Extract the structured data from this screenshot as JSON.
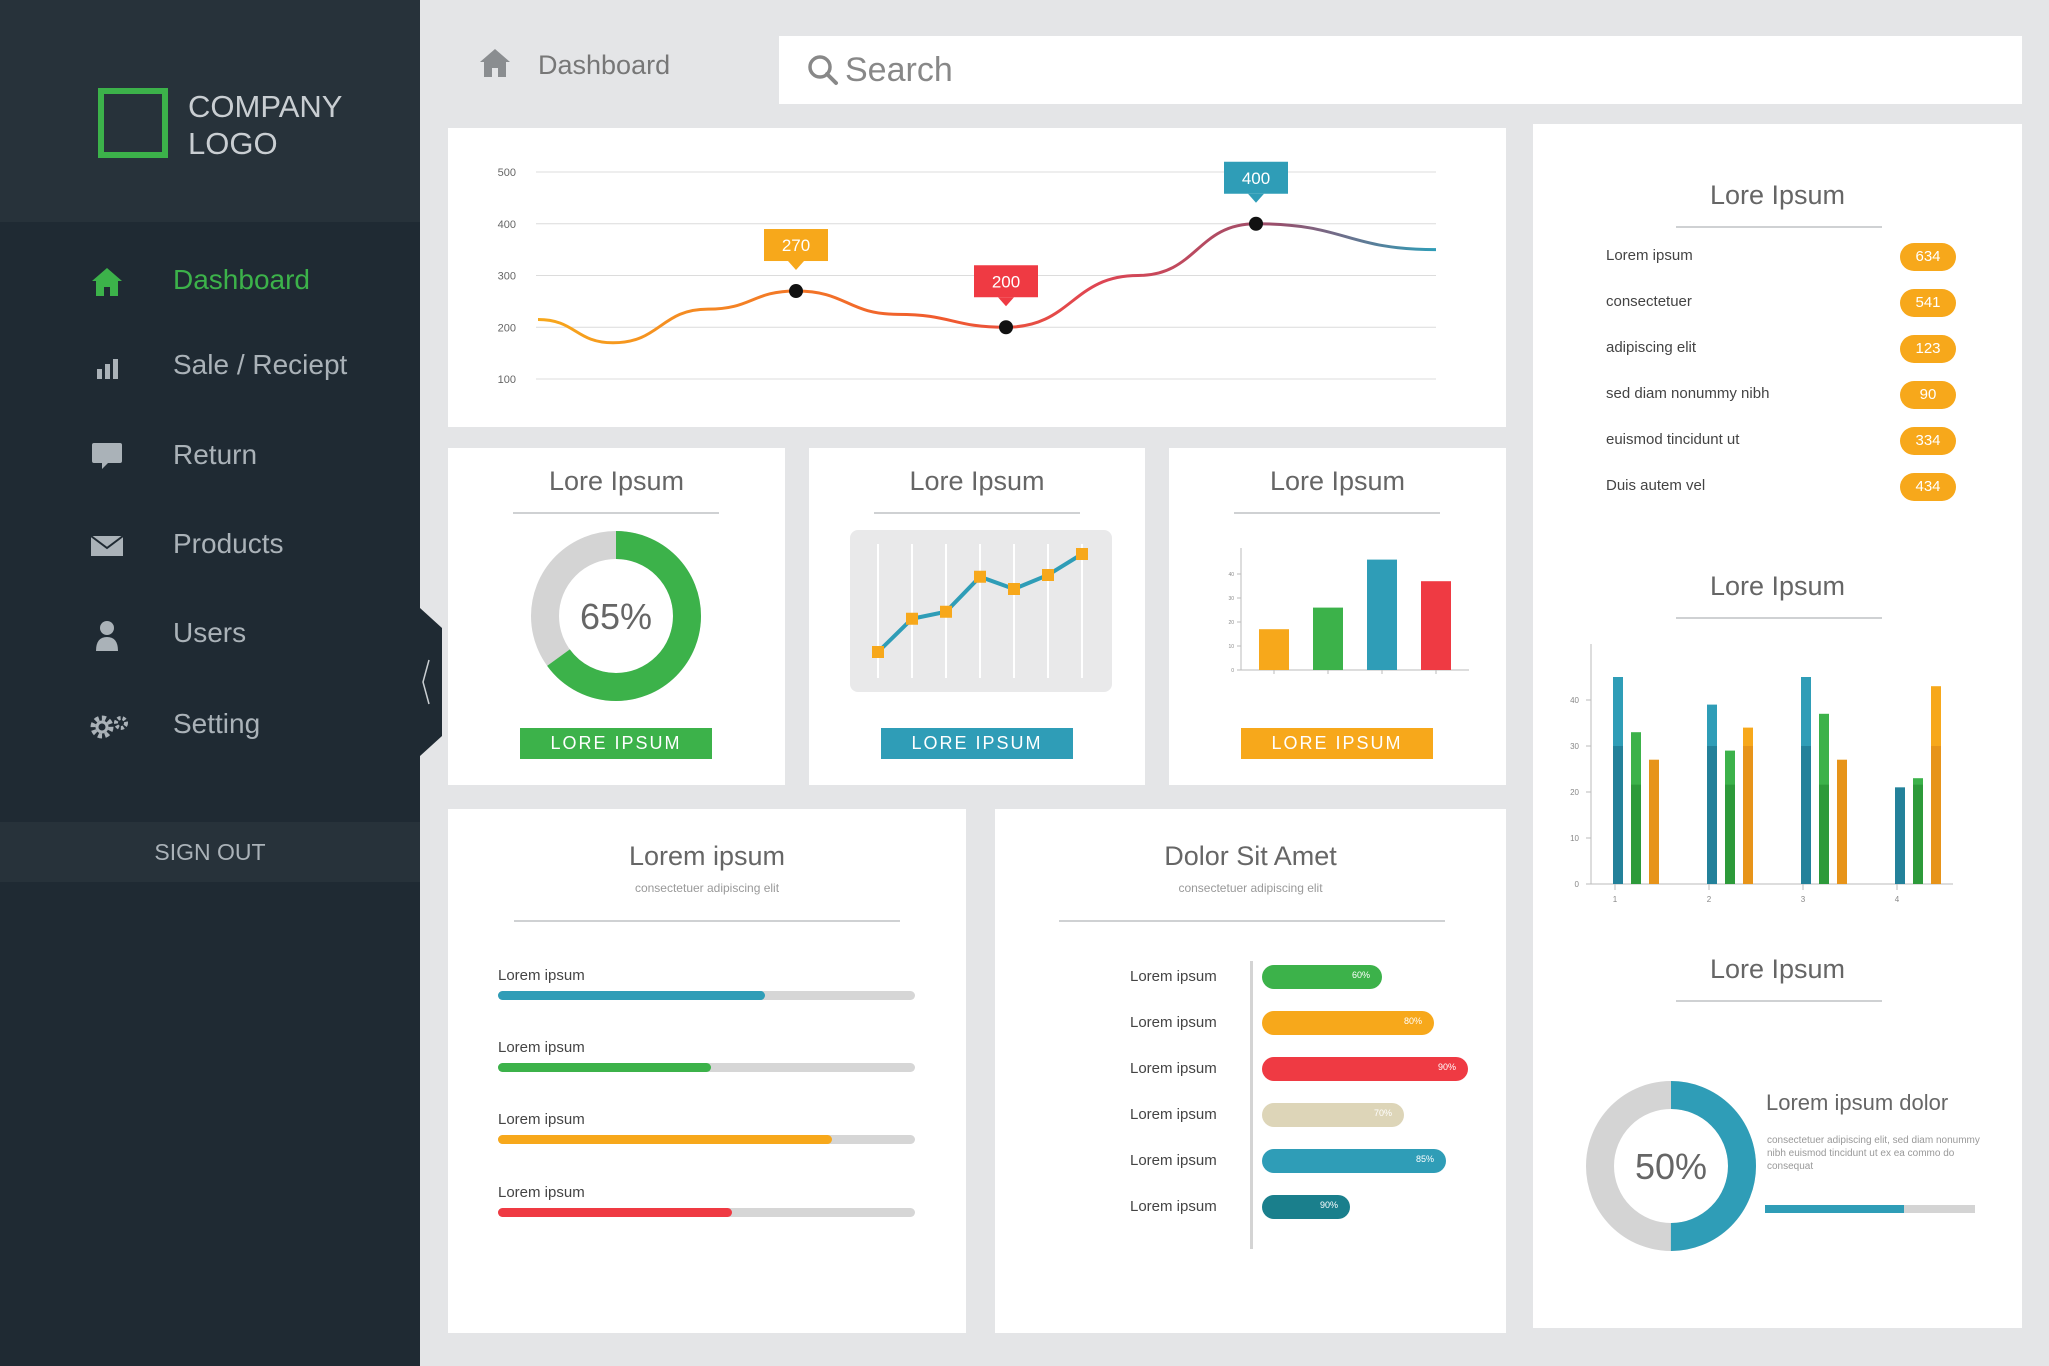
{
  "brand": {
    "logo_text": "COMPANY LOGO"
  },
  "nav": [
    {
      "label": "Dashboard",
      "icon": "home-icon",
      "active": true
    },
    {
      "label": "Sale / Reciept",
      "icon": "bar-chart-icon"
    },
    {
      "label": "Return",
      "icon": "speech-bubble-icon"
    },
    {
      "label": "Products",
      "icon": "envelope-icon"
    },
    {
      "label": "Users",
      "icon": "user-icon"
    },
    {
      "label": "Setting",
      "icon": "gears-icon"
    }
  ],
  "sign_out": "SIGN OUT",
  "breadcrumb": {
    "icon": "home-icon",
    "label": "Dashboard"
  },
  "search": {
    "placeholder": "Search",
    "icon": "search-icon"
  },
  "colors": {
    "green": "#3cb24a",
    "blue": "#2f9db7",
    "orange": "#f7a81b",
    "red": "#ef3a43",
    "beige": "#ddd5b8",
    "teal": "#1a7f8c",
    "sidebar": "#1f2a33"
  },
  "line_chart": {
    "y_ticks": [
      "500",
      "400",
      "300",
      "200",
      "100"
    ],
    "callouts": [
      "270",
      "200",
      "400"
    ]
  },
  "donut_card": {
    "title": "Lore Ipsum",
    "value_label": "65%",
    "button": "LORE IPSUM"
  },
  "line_card": {
    "title": "Lore Ipsum",
    "button": "LORE IPSUM"
  },
  "bar_card": {
    "title": "Lore Ipsum",
    "button": "LORE IPSUM"
  },
  "progress_card": {
    "title": "Lorem ipsum",
    "subtitle": "consectetuer adipiscing elit",
    "items": [
      {
        "label": "Lorem ipsum"
      },
      {
        "label": "Lorem ipsum"
      },
      {
        "label": "Lorem ipsum"
      },
      {
        "label": "Lorem ipsum"
      }
    ]
  },
  "hbar_card": {
    "title": "Dolor Sit Amet",
    "subtitle": "consectetuer adipiscing elit",
    "items": [
      {
        "label": "Lorem ipsum",
        "pct": "60%"
      },
      {
        "label": "Lorem ipsum",
        "pct": "80%"
      },
      {
        "label": "Lorem ipsum",
        "pct": "90%"
      },
      {
        "label": "Lorem ipsum",
        "pct": "70%"
      },
      {
        "label": "Lorem ipsum",
        "pct": "85%"
      },
      {
        "label": "Lorem ipsum",
        "pct": "90%"
      }
    ]
  },
  "right_list": {
    "title": "Lore Ipsum",
    "items": [
      {
        "label": "Lorem ipsum",
        "value": "634"
      },
      {
        "label": "consectetuer",
        "value": "541"
      },
      {
        "label": "adipiscing elit",
        "value": "123"
      },
      {
        "label": "sed diam nonummy nibh",
        "value": "90"
      },
      {
        "label": "euismod tincidunt ut",
        "value": "334"
      },
      {
        "label": "Duis autem vel",
        "value": "434"
      }
    ]
  },
  "right_chart": {
    "title": "Lore Ipsum"
  },
  "right_donut": {
    "title": "Lore Ipsum",
    "value_label": "50%",
    "heading": "Lorem ipsum dolor",
    "text": "consectetuer adipiscing elit, sed diam nonummy nibh euismod tincidunt ut  ex ea commo do consequat"
  },
  "chart_data": [
    {
      "type": "line",
      "x": [
        0,
        1,
        2,
        3,
        4,
        5,
        6,
        7
      ],
      "y": [
        215,
        170,
        235,
        270,
        225,
        200,
        300,
        400
      ],
      "highlight_points": [
        {
          "label": "270",
          "y": 270
        },
        {
          "label": "200",
          "y": 200
        },
        {
          "label": "400",
          "y": 400
        }
      ],
      "ylim": [
        100,
        500
      ],
      "y_ticks": [
        100,
        200,
        300,
        400,
        500
      ],
      "grid": true
    },
    {
      "type": "pie",
      "values": [
        65,
        35
      ],
      "labels": [
        "filled",
        "remaining"
      ],
      "center_label": "65%"
    },
    {
      "type": "line",
      "y": [
        1,
        2.9,
        3.3,
        5.3,
        4.6,
        5.4,
        6.6
      ]
    },
    {
      "type": "bar",
      "values": [
        17,
        26,
        46,
        37
      ],
      "ylim": [
        0,
        50
      ],
      "y_ticks": [
        0,
        10,
        20,
        30,
        40
      ]
    },
    {
      "type": "bar",
      "categories": [
        "1",
        "2",
        "3",
        "4"
      ],
      "y_ticks": [
        0,
        10,
        20,
        30,
        40
      ],
      "ylim": [
        0,
        50
      ],
      "series": [
        {
          "values": [
            45,
            39,
            45,
            21
          ]
        },
        {
          "values": [
            33,
            29,
            37,
            23
          ]
        },
        {
          "values": [
            27,
            34,
            27,
            43
          ]
        }
      ]
    },
    {
      "type": "pie",
      "values": [
        50,
        50
      ],
      "center_label": "50%"
    }
  ],
  "progress_values": [
    0.64,
    0.51,
    0.8,
    0.56
  ],
  "right_donut_progress": 0.66
}
